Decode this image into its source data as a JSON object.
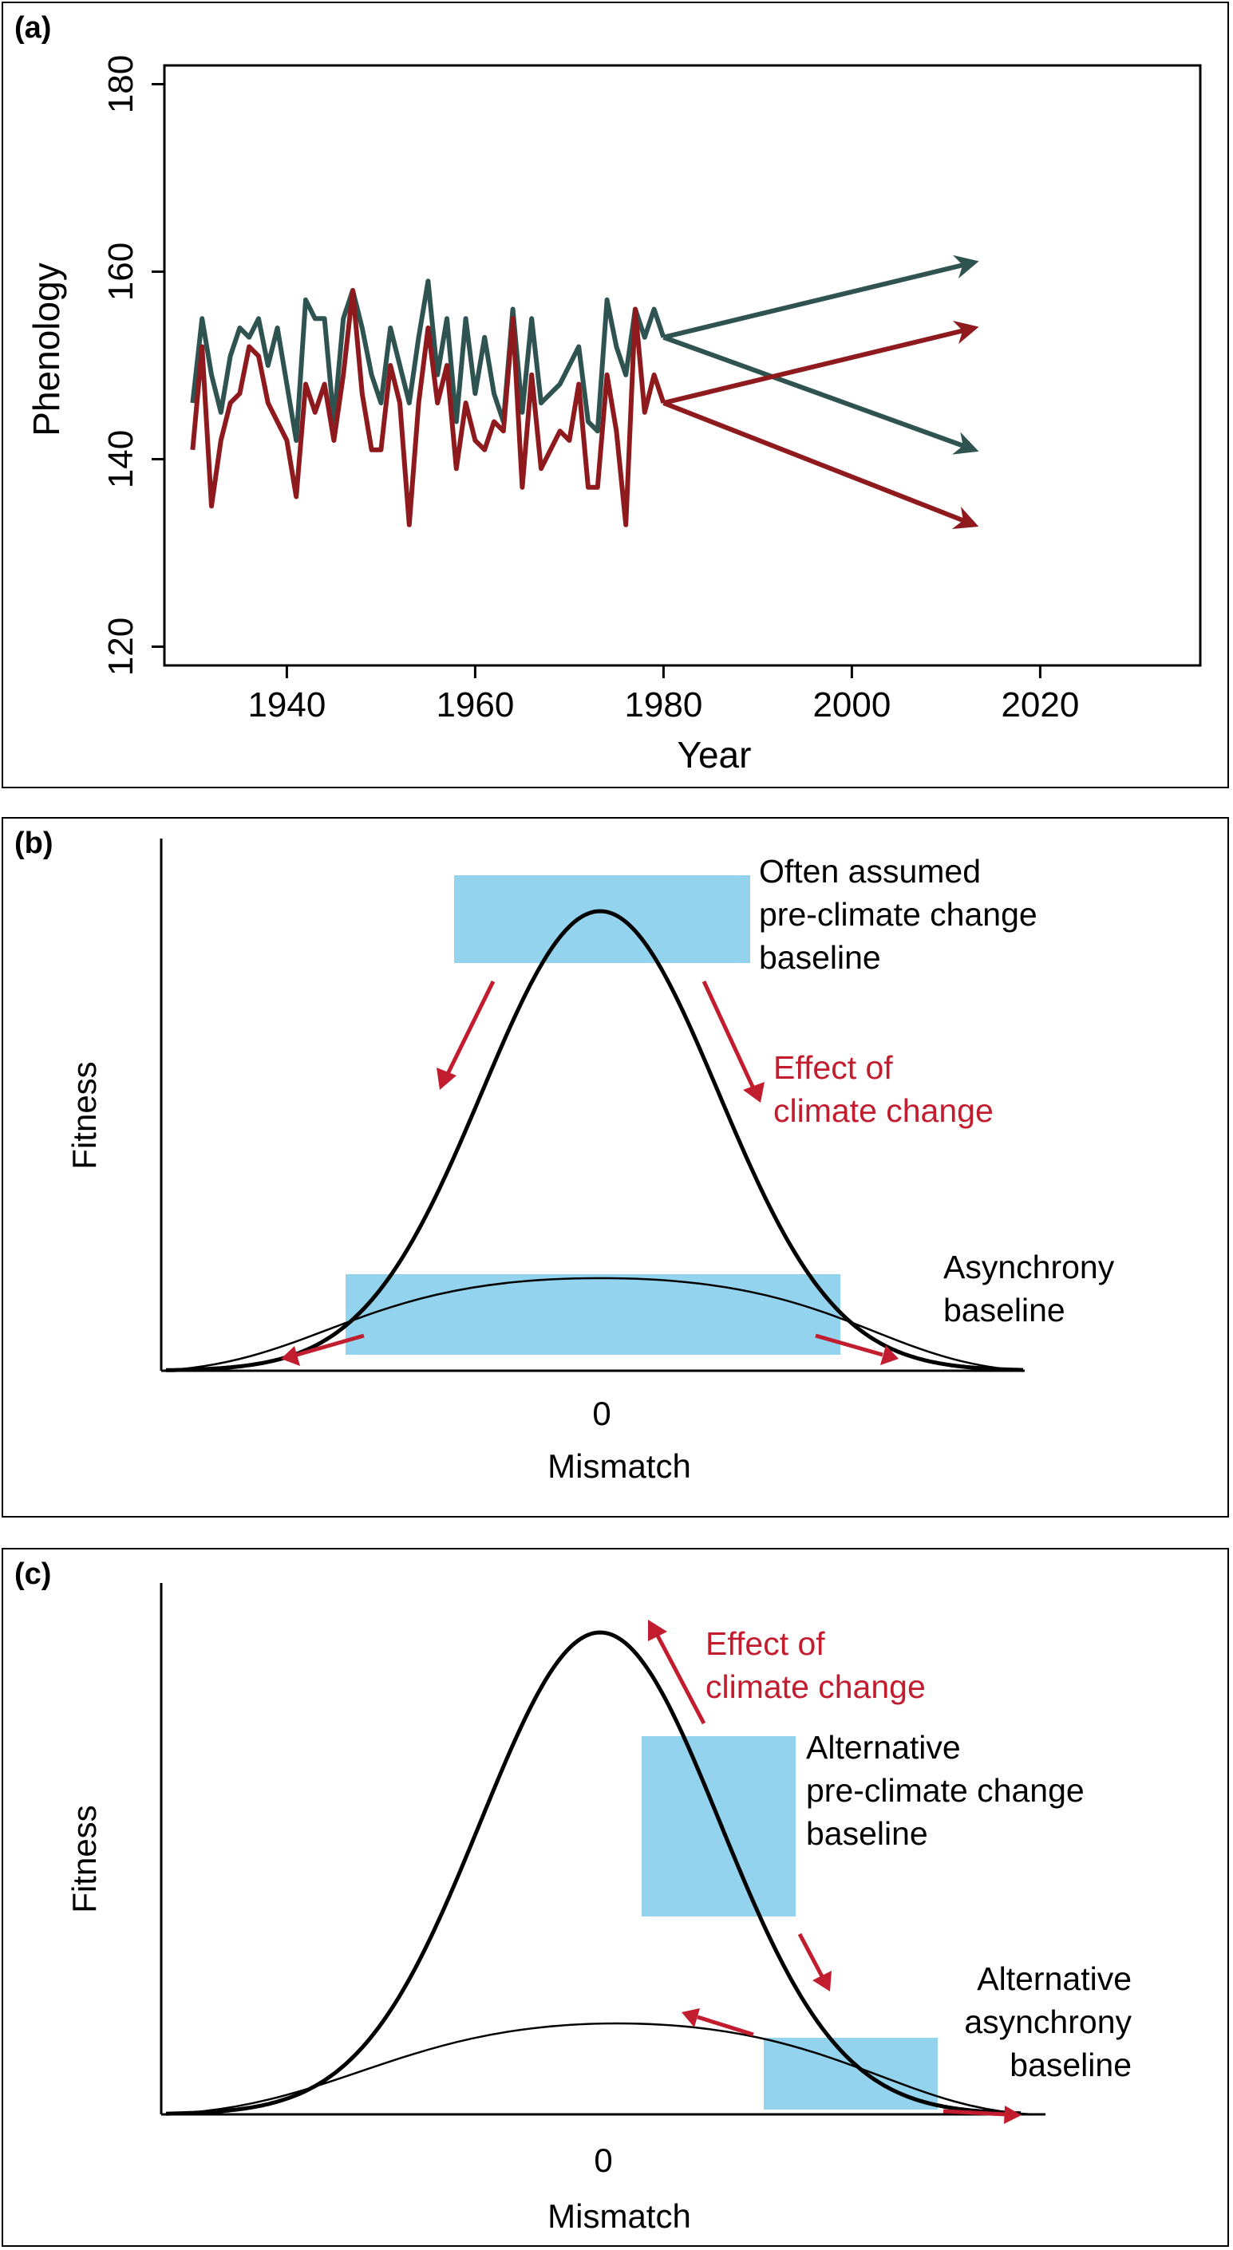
{
  "chart_data": [
    {
      "panel_label": "(a)",
      "type": "line",
      "xlabel": "Year",
      "ylabel": "Phenology",
      "xlim": [
        1927,
        2037
      ],
      "ylim": [
        118,
        182
      ],
      "xticks": [
        1940,
        1960,
        1980,
        2000,
        2020
      ],
      "yticks": [
        120,
        140,
        160,
        180
      ],
      "colors": {
        "green": "#2f5350",
        "red": "#8e1a1e"
      },
      "series": [
        {
          "color": "green",
          "x": [
            1930,
            1931,
            1932,
            1933,
            1934,
            1935,
            1936,
            1937,
            1938,
            1939,
            1940,
            1941,
            1942,
            1943,
            1944,
            1945,
            1946,
            1947,
            1948,
            1949,
            1950,
            1951,
            1952,
            1953,
            1954,
            1955,
            1956,
            1957,
            1958,
            1959,
            1960,
            1961,
            1962,
            1963,
            1964,
            1965,
            1966,
            1967,
            1968,
            1969,
            1970,
            1971,
            1972,
            1973,
            1974,
            1975,
            1976,
            1977,
            1978,
            1979,
            1980
          ],
          "values": [
            146,
            155,
            149,
            145,
            151,
            154,
            153,
            155,
            150,
            154,
            148,
            142,
            157,
            155,
            155,
            144,
            155,
            158,
            154,
            149,
            146,
            154,
            150,
            146,
            153,
            159,
            149,
            155,
            144,
            155,
            147,
            153,
            147,
            144,
            156,
            145,
            155,
            146,
            147,
            148,
            150,
            152,
            144,
            143,
            157,
            152,
            149,
            156,
            153,
            156,
            153
          ]
        },
        {
          "color": "red",
          "x": [
            1930,
            1931,
            1932,
            1933,
            1934,
            1935,
            1936,
            1937,
            1938,
            1939,
            1940,
            1941,
            1942,
            1943,
            1944,
            1945,
            1946,
            1947,
            1948,
            1949,
            1950,
            1951,
            1952,
            1953,
            1954,
            1955,
            1956,
            1957,
            1958,
            1959,
            1960,
            1961,
            1962,
            1963,
            1964,
            1965,
            1966,
            1967,
            1968,
            1969,
            1970,
            1971,
            1972,
            1973,
            1974,
            1975,
            1976,
            1977,
            1978,
            1979,
            1980
          ],
          "values": [
            141,
            152,
            135,
            142,
            146,
            147,
            152,
            151,
            146,
            144,
            142,
            136,
            148,
            145,
            148,
            142,
            149,
            158,
            147,
            141,
            141,
            150,
            146,
            133,
            146,
            154,
            146,
            150,
            139,
            146,
            142,
            141,
            144,
            143,
            155,
            137,
            149,
            139,
            141,
            143,
            142,
            148,
            137,
            137,
            149,
            143,
            133,
            156,
            145,
            149,
            146
          ]
        }
      ],
      "arrows": [
        {
          "color": "green",
          "from": [
            1980,
            153
          ],
          "to": [
            2013,
            161
          ]
        },
        {
          "color": "green",
          "from": [
            1980,
            153
          ],
          "to": [
            2013,
            141
          ]
        },
        {
          "color": "red",
          "from": [
            1980,
            146
          ],
          "to": [
            2013,
            154
          ]
        },
        {
          "color": "red",
          "from": [
            1980,
            146
          ],
          "to": [
            2013,
            133
          ]
        }
      ]
    },
    {
      "panel_label": "(b)",
      "type": "line",
      "xlabel": "Mismatch",
      "ylabel": "Fitness",
      "xtick": "0",
      "colors": {
        "box": "#93d3ee",
        "arrow": "#c21d2f"
      },
      "annotations": {
        "top_box": [
          "Often assumed",
          "pre-climate change",
          "baseline"
        ],
        "effect": [
          "Effect of",
          "climate change"
        ],
        "bottom_box": [
          "Asynchrony",
          "baseline"
        ]
      }
    },
    {
      "panel_label": "(c)",
      "type": "line",
      "xlabel": "Mismatch",
      "ylabel": "Fitness",
      "xtick": "0",
      "colors": {
        "box": "#93d3ee",
        "arrow": "#c21d2f"
      },
      "annotations": {
        "effect": [
          "Effect of",
          "climate change"
        ],
        "upper_box": [
          "Alternative",
          "pre-climate change",
          "baseline"
        ],
        "lower_box": [
          "Alternative",
          "asynchrony",
          "baseline"
        ]
      }
    }
  ]
}
